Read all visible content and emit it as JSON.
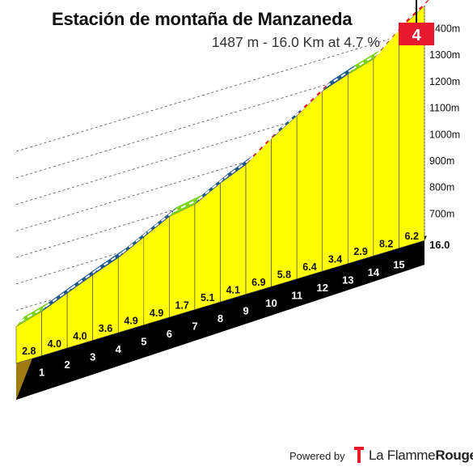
{
  "title": "Estación de montaña de Manzaneda",
  "subtitle": "1487 m - 16.0 Km at 4.7 %",
  "category": "4",
  "footer": {
    "powered_by": "Powered by",
    "brand_plain": "La Flamme",
    "brand_bold": "Rouge"
  },
  "colors": {
    "profile_face": "#ffff00",
    "base": "#000000",
    "start_wall": "#a07a12",
    "finish_flag": "#e8192c",
    "gradient_0_3": "#7ed321",
    "gradient_3_6": "#1f5a8f",
    "gradient_6_9": "#e8192c"
  },
  "chart_data": {
    "type": "area",
    "title": "Estación de montaña de Manzaneda",
    "xlabel": "",
    "ylabel": "",
    "x_unit": "km",
    "y_unit": "m",
    "total_distance_label": "16.0",
    "km_labels": [
      "1",
      "2",
      "3",
      "4",
      "5",
      "6",
      "7",
      "8",
      "9",
      "10",
      "11",
      "12",
      "13",
      "14",
      "15"
    ],
    "segment_gradients": [
      2.8,
      4.0,
      4.0,
      3.6,
      4.9,
      4.9,
      1.7,
      5.1,
      4.1,
      6.9,
      5.8,
      6.4,
      3.4,
      2.9,
      8.2,
      6.2
    ],
    "segment_gradient_labels": [
      "2.8",
      "4.0",
      "4.0",
      "3.6",
      "4.9",
      "4.9",
      "1.7",
      "5.1",
      "4.1",
      "6.9",
      "5.8",
      "6.4",
      "3.4",
      "2.9",
      "8.2",
      "6.2"
    ],
    "start_altitude": 739,
    "end_altitude": 1487,
    "altitude_ticks": [
      700,
      800,
      900,
      1000,
      1100,
      1200,
      1300,
      1400
    ],
    "altitude_tick_labels": [
      "700m",
      "800m",
      "900m",
      "1000m",
      "1100m",
      "1200m",
      "1300m",
      "1400m"
    ],
    "ylim": [
      600,
      1500
    ],
    "grid": true
  }
}
